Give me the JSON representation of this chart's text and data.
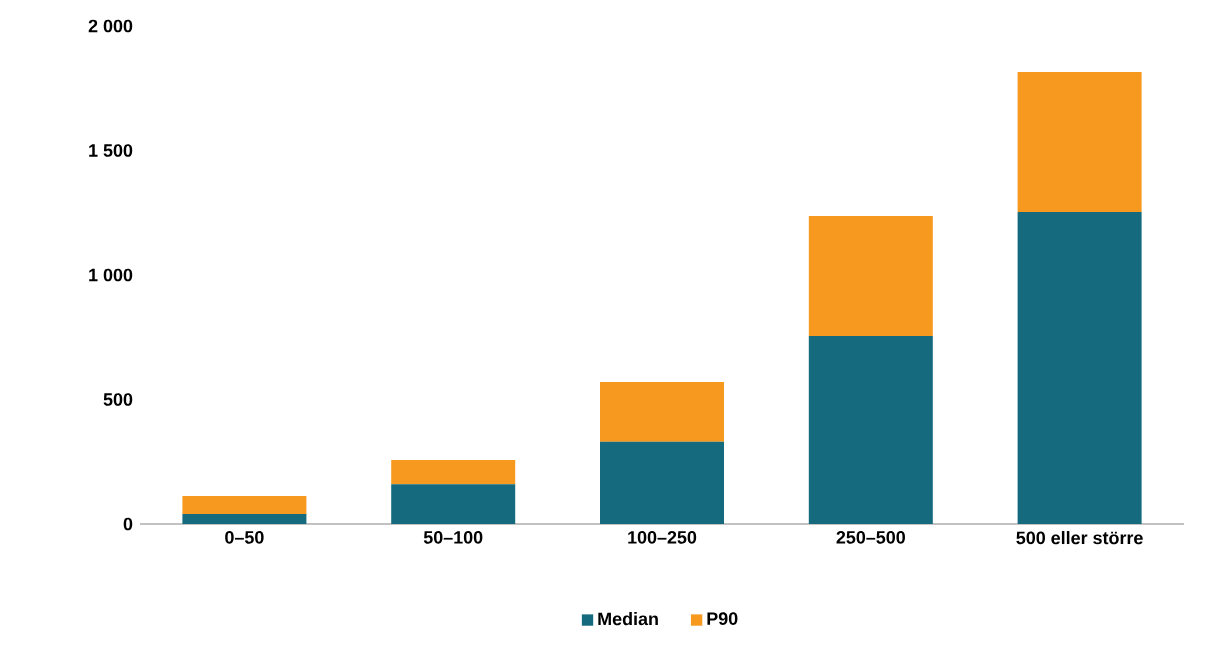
{
  "chart_data": {
    "type": "bar",
    "stacked": true,
    "categories": [
      "0–50",
      "50–100",
      "100–250",
      "250–500",
      "500 eller större"
    ],
    "series": [
      {
        "name": "Median",
        "color": "#156a7e",
        "values": [
          40,
          160,
          330,
          755,
          1253
        ]
      },
      {
        "name": "P90",
        "color": "#f7991f",
        "values": [
          72,
          97,
          240,
          482,
          562
        ]
      }
    ],
    "ylim": [
      0,
      2000
    ],
    "yticks": [
      0,
      500,
      {
        "value": 1000,
        "label": "1 000"
      },
      {
        "value": 1500,
        "label": "1 500"
      },
      {
        "value": 2000,
        "label": "2 000"
      }
    ],
    "legend": "bottom"
  }
}
